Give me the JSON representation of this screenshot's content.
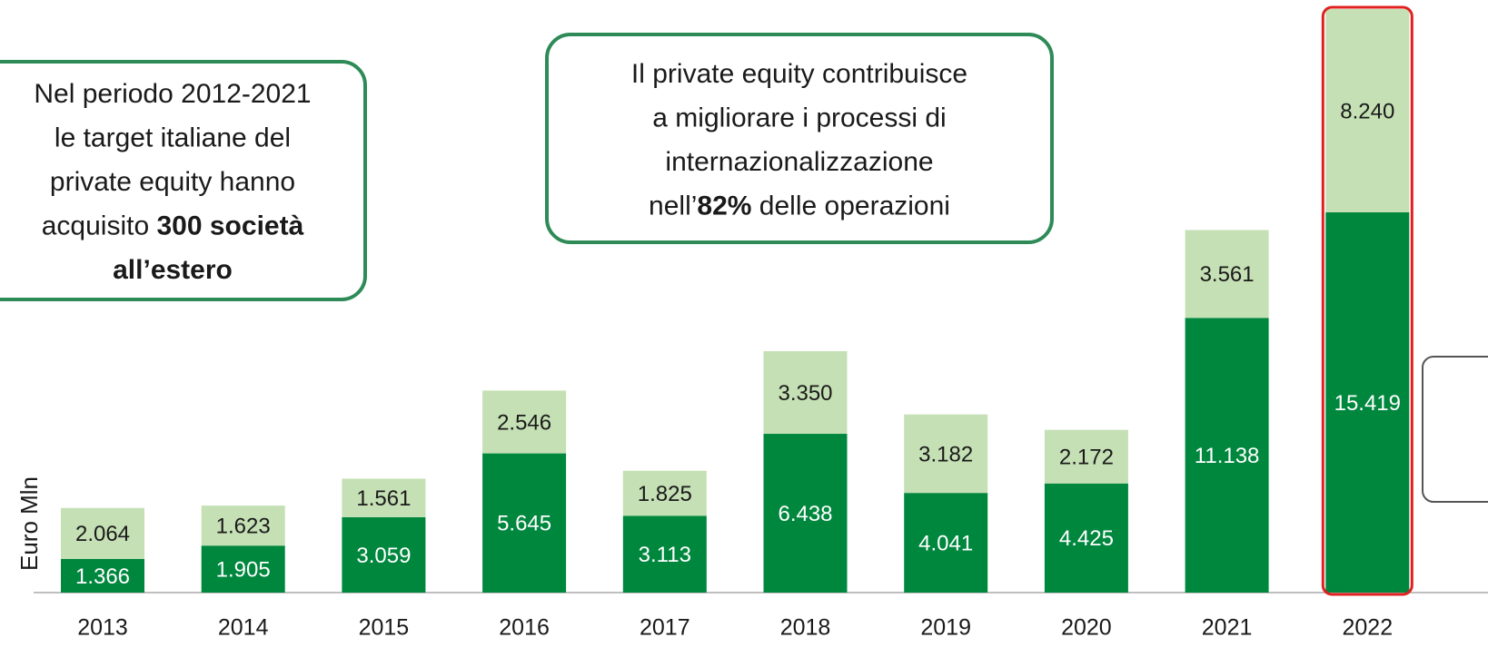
{
  "chart_data": {
    "type": "stacked_bar",
    "y_label": "Euro Mln",
    "categories": [
      "2013",
      "2014",
      "2015",
      "2016",
      "2017",
      "2018",
      "2019",
      "2020",
      "2021",
      "2022"
    ],
    "series": [
      {
        "color": "#00873e",
        "label_color": "#ffffff",
        "values": [
          1366,
          1905,
          3059,
          5645,
          3113,
          6438,
          4041,
          4425,
          11138,
          15419
        ],
        "value_labels": [
          "1.366",
          "1.905",
          "3.059",
          "5.645",
          "3.113",
          "6.438",
          "4.041",
          "4.425",
          "11.138",
          "15.419"
        ]
      },
      {
        "color": "#c5e0b4",
        "label_color": "#1a1a1a",
        "values": [
          2064,
          1623,
          1561,
          2546,
          1825,
          3350,
          3182,
          2172,
          3561,
          8240
        ],
        "value_labels": [
          "2.064",
          "1.623",
          "1.561",
          "2.546",
          "1.825",
          "3.350",
          "3.182",
          "2.172",
          "3.561",
          "8.240"
        ]
      }
    ],
    "highlight": "2022",
    "highlight_color": "#e02020",
    "annotations": [
      {
        "lines": [
          [
            {
              "text": "Nel periodo 2012-2021"
            }
          ],
          [
            {
              "text": "le target italiane del"
            }
          ],
          [
            {
              "text": "private equity hanno"
            }
          ],
          [
            {
              "text": "acquisito "
            },
            {
              "text": "300 società",
              "bold": true
            }
          ],
          [
            {
              "text": "all’estero",
              "bold": true
            }
          ]
        ]
      },
      {
        "lines": [
          [
            {
              "text": "Il private equity contribuisce"
            }
          ],
          [
            {
              "text": "a migliorare i processi di"
            }
          ],
          [
            {
              "text": "internazionalizzazione"
            }
          ],
          [
            {
              "text": "nell’"
            },
            {
              "text": "82%",
              "bold": true
            },
            {
              "text": " delle operazioni"
            }
          ]
        ]
      }
    ]
  }
}
